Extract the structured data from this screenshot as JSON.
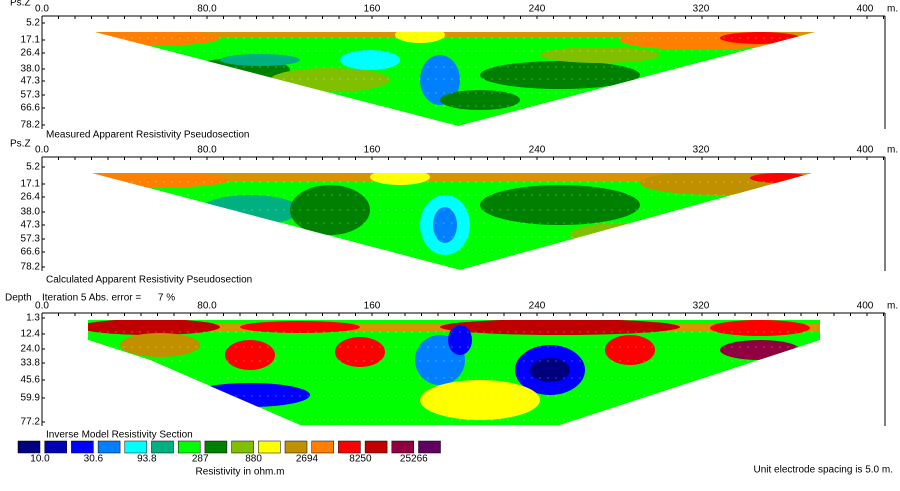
{
  "panels": [
    {
      "depth_label": "Ps.Z",
      "x_ticks": [
        "0.0",
        "80.0",
        "160",
        "240",
        "320",
        "400"
      ],
      "x_unit": "m.",
      "depth_ticks": [
        "5.2",
        "17.1",
        "26.4",
        "38.0",
        "47.3",
        "57.3",
        "66.6",
        "78.2"
      ],
      "title": "Measured Apparent Resistivity Pseudosection"
    },
    {
      "depth_label": "Ps.Z",
      "x_ticks": [
        "0.0",
        "80.0",
        "160",
        "240",
        "320",
        "400"
      ],
      "x_unit": "m.",
      "depth_ticks": [
        "5.2",
        "17.1",
        "26.4",
        "38.0",
        "47.3",
        "57.3",
        "66.6",
        "78.2"
      ],
      "title": "Calculated Apparent Resistivity Pseudosection"
    },
    {
      "depth_label": "Depth",
      "iteration": "Iteration 5 Abs. error =      7 %",
      "x_ticks": [
        "0.0",
        "80.0",
        "160",
        "240",
        "320",
        "400"
      ],
      "x_unit": "m.",
      "depth_ticks": [
        "1.3",
        "12.4",
        "24.0",
        "33.8",
        "45.6",
        "59.9",
        "77.2"
      ],
      "title": "Inverse Model Resistivity Section"
    }
  ],
  "legend": {
    "labels": [
      "10.0",
      "30.6",
      "93.8",
      "287",
      "880",
      "2694",
      "8250",
      "25266"
    ],
    "caption": "Resistivity in ohm.m"
  },
  "footer": "Unit electrode spacing is 5.0 m."
}
